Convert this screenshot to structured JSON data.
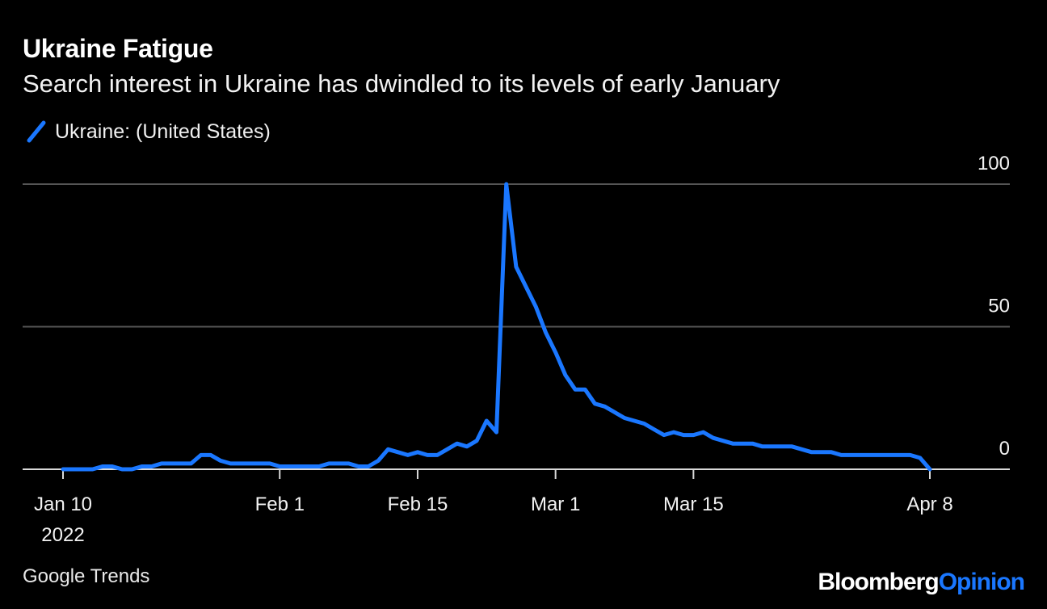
{
  "title": "Ukraine Fatigue",
  "subtitle": "Search interest in Ukraine has dwindled to its levels of early January",
  "source": "Google Trends",
  "brand": {
    "part1": "Bloomberg",
    "part2": "Opinion"
  },
  "colors": {
    "background": "#000000",
    "line": "#1a77ff",
    "grid": "#555555",
    "text": "#ffffff"
  },
  "chart_data": {
    "type": "line",
    "series": [
      {
        "name": "Ukraine: (United States)",
        "x": [
          "2022-01-10",
          "2022-01-11",
          "2022-01-12",
          "2022-01-13",
          "2022-01-14",
          "2022-01-15",
          "2022-01-16",
          "2022-01-17",
          "2022-01-18",
          "2022-01-19",
          "2022-01-20",
          "2022-01-21",
          "2022-01-22",
          "2022-01-23",
          "2022-01-24",
          "2022-01-25",
          "2022-01-26",
          "2022-01-27",
          "2022-01-28",
          "2022-01-29",
          "2022-01-30",
          "2022-01-31",
          "2022-02-01",
          "2022-02-02",
          "2022-02-03",
          "2022-02-04",
          "2022-02-05",
          "2022-02-06",
          "2022-02-07",
          "2022-02-08",
          "2022-02-09",
          "2022-02-10",
          "2022-02-11",
          "2022-02-12",
          "2022-02-13",
          "2022-02-14",
          "2022-02-15",
          "2022-02-16",
          "2022-02-17",
          "2022-02-18",
          "2022-02-19",
          "2022-02-20",
          "2022-02-21",
          "2022-02-22",
          "2022-02-23",
          "2022-02-24",
          "2022-02-25",
          "2022-02-26",
          "2022-02-27",
          "2022-02-28",
          "2022-03-01",
          "2022-03-02",
          "2022-03-03",
          "2022-03-04",
          "2022-03-05",
          "2022-03-06",
          "2022-03-07",
          "2022-03-08",
          "2022-03-09",
          "2022-03-10",
          "2022-03-11",
          "2022-03-12",
          "2022-03-13",
          "2022-03-14",
          "2022-03-15",
          "2022-03-16",
          "2022-03-17",
          "2022-03-18",
          "2022-03-19",
          "2022-03-20",
          "2022-03-21",
          "2022-03-22",
          "2022-03-23",
          "2022-03-24",
          "2022-03-25",
          "2022-03-26",
          "2022-03-27",
          "2022-03-28",
          "2022-03-29",
          "2022-03-30",
          "2022-03-31",
          "2022-04-01",
          "2022-04-02",
          "2022-04-03",
          "2022-04-04",
          "2022-04-05",
          "2022-04-06",
          "2022-04-07",
          "2022-04-08"
        ],
        "values": [
          0,
          0,
          0,
          0,
          1,
          1,
          0,
          0,
          1,
          1,
          2,
          2,
          2,
          2,
          5,
          5,
          3,
          2,
          2,
          2,
          2,
          2,
          1,
          1,
          1,
          1,
          1,
          2,
          2,
          2,
          1,
          1,
          3,
          7,
          6,
          5,
          6,
          5,
          5,
          7,
          9,
          8,
          10,
          17,
          13,
          100,
          71,
          64,
          57,
          48,
          41,
          33,
          28,
          28,
          23,
          22,
          20,
          18,
          17,
          16,
          14,
          12,
          13,
          12,
          12,
          13,
          11,
          10,
          9,
          9,
          9,
          8,
          8,
          8,
          8,
          7,
          6,
          6,
          6,
          5,
          5,
          5,
          5,
          5,
          5,
          5,
          5,
          4,
          0
        ]
      }
    ],
    "ylim": [
      0,
      100
    ],
    "yticks": [
      0,
      50,
      100
    ],
    "xticks": [
      {
        "date": "2022-01-10",
        "label": "Jan 10",
        "sublabel": "2022"
      },
      {
        "date": "2022-02-01",
        "label": "Feb 1"
      },
      {
        "date": "2022-02-15",
        "label": "Feb 15"
      },
      {
        "date": "2022-03-01",
        "label": "Mar 1"
      },
      {
        "date": "2022-03-15",
        "label": "Mar 15"
      },
      {
        "date": "2022-04-08",
        "label": "Apr 8"
      }
    ],
    "legend_position": "top-left",
    "grid": true
  }
}
